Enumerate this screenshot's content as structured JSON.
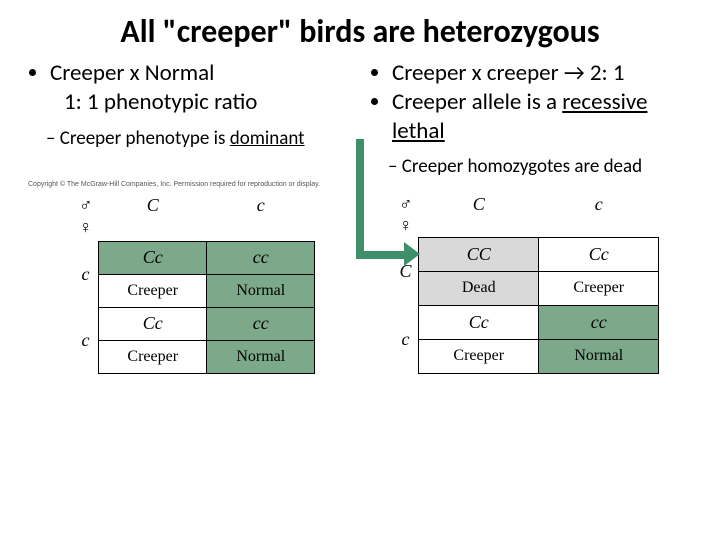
{
  "title": "All \"creeper\" birds are heterozygous",
  "left": {
    "b1a": "Creeper x Normal",
    "b1b": "1: 1 phenotypic ratio",
    "b2a": "Creeper phenotype is ",
    "b2a_u": "dominant"
  },
  "right": {
    "b1a": "Creeper x creeper → 2: 1",
    "b1b_pre": "Creeper allele is a ",
    "b1b_u": "recessive lethal",
    "b2a": "Creeper homozygotes are dead"
  },
  "copyright": "Copyright © The McGraw-Hill Companies, Inc. Permission required for reproduction or display.",
  "punnett1": {
    "colhdr": [
      "C",
      "c"
    ],
    "rowhdr": [
      "c",
      "c"
    ],
    "cells": [
      [
        {
          "geno": "Cc",
          "pheno": "",
          "fill": "#7ba98a"
        },
        {
          "geno": "cc",
          "pheno": "",
          "fill": "#7ba98a"
        }
      ],
      [
        {
          "geno": "Creeper",
          "pheno": "",
          "fill": "#ffffff",
          "label": true
        },
        {
          "geno": "Normal",
          "pheno": "",
          "fill": "#7ba98a",
          "label": true
        }
      ],
      [
        {
          "geno": "Cc",
          "pheno": "",
          "fill": "#ffffff"
        },
        {
          "geno": "cc",
          "pheno": "",
          "fill": "#7ba98a"
        }
      ],
      [
        {
          "geno": "Creeper",
          "pheno": "",
          "fill": "#ffffff",
          "label": true
        },
        {
          "geno": "Normal",
          "pheno": "",
          "fill": "#7ba98a",
          "label": true
        }
      ]
    ]
  },
  "punnett2": {
    "colhdr": [
      "C",
      "c"
    ],
    "rowhdr": [
      "C",
      "c"
    ],
    "cells": [
      [
        {
          "geno": "CC",
          "pheno": "Dead",
          "fill": "#d9d9d9"
        },
        {
          "geno": "Cc",
          "pheno": "Creeper",
          "fill": "#ffffff"
        }
      ],
      [
        {
          "geno": "Cc",
          "pheno": "Creeper",
          "fill": "#ffffff"
        },
        {
          "geno": "cc",
          "pheno": "Normal",
          "fill": "#7ba98a"
        }
      ]
    ]
  }
}
